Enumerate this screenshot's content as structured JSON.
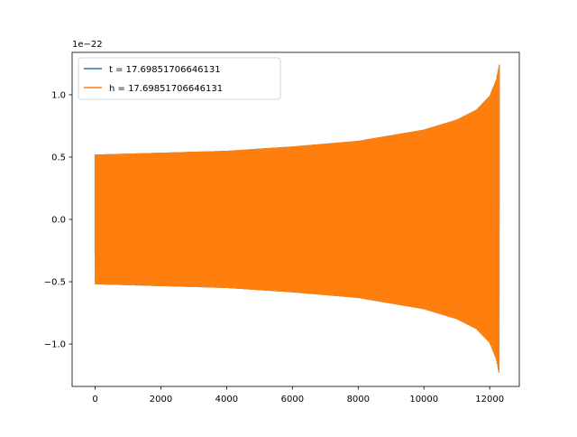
{
  "chart_data": {
    "type": "line",
    "title": "",
    "xlabel": "",
    "ylabel": "",
    "y_offset_label": "1e−22",
    "xlim": [
      -700,
      12900
    ],
    "ylim": [
      -1.34,
      1.34
    ],
    "xticks": [
      0,
      2000,
      4000,
      6000,
      8000,
      10000,
      12000
    ],
    "yticks": [
      -1.0,
      -0.5,
      0.0,
      0.5,
      1.0
    ],
    "xtick_labels": [
      "0",
      "2000",
      "4000",
      "6000",
      "8000",
      "10000",
      "12000"
    ],
    "ytick_labels": [
      "−1.0",
      "−0.5",
      "0.0",
      "0.5",
      "1.0"
    ],
    "grid": false,
    "legend_position": "upper-left",
    "series": [
      {
        "name": "t = 17.69851706646131",
        "color": "#1f77b4",
        "signal": "chirp oscillation",
        "x_range": [
          0,
          12290
        ],
        "start_value": -0.28,
        "envelope_x": [
          0,
          2000,
          4000,
          6000,
          8000,
          10000,
          11000,
          11600,
          12000,
          12200,
          12290
        ],
        "envelope_amplitude": [
          0.52,
          0.535,
          0.55,
          0.585,
          0.63,
          0.72,
          0.8,
          0.88,
          0.99,
          1.12,
          1.24
        ]
      },
      {
        "name": "h = 17.69851706646131",
        "color": "#ff7f0e",
        "signal": "chirp oscillation",
        "x_range": [
          0,
          12290
        ],
        "start_value": -0.28,
        "envelope_x": [
          0,
          2000,
          4000,
          6000,
          8000,
          10000,
          11000,
          11600,
          12000,
          12200,
          12290
        ],
        "envelope_amplitude": [
          0.52,
          0.535,
          0.55,
          0.585,
          0.63,
          0.72,
          0.8,
          0.88,
          0.99,
          1.12,
          1.24
        ]
      }
    ]
  }
}
